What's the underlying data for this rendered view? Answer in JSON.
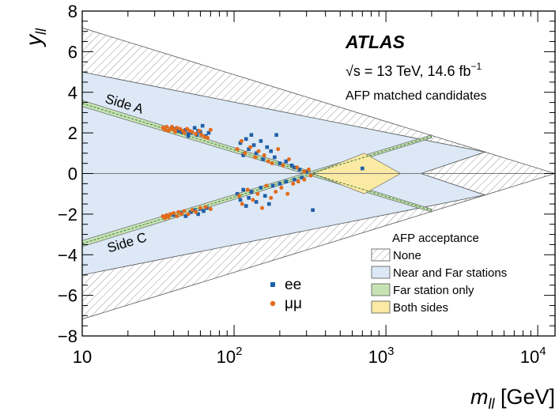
{
  "chart_data": {
    "type": "scatter",
    "xlabel_main": "m",
    "xlabel_sub": "ll",
    "xlabel_unit": " [GeV]",
    "ylabel_main": "y",
    "ylabel_sub": "ll",
    "x_scale": "log",
    "xlim": [
      10,
      13000
    ],
    "ylim": [
      -8,
      8
    ],
    "x_ticks": [
      {
        "value": 10,
        "base": "10",
        "exp": ""
      },
      {
        "value": 100,
        "base": "10",
        "exp": "2"
      },
      {
        "value": 1000,
        "base": "10",
        "exp": "3"
      },
      {
        "value": 10000,
        "base": "10",
        "exp": "4"
      }
    ],
    "y_ticks": [
      "-8",
      "-6",
      "-4",
      "-2",
      "0",
      "2",
      "4",
      "6",
      "8"
    ],
    "atlas_label": "ATLAS",
    "energy_label": "√s = 13 TeV, 14.6 fb",
    "energy_exp": "−1",
    "subtitle": "AFP matched candidates",
    "region_labels": {
      "side_a": "Side A",
      "side_c": "Side C"
    },
    "legend_title": "AFP acceptance",
    "legend": [
      {
        "key": "none",
        "label": "None",
        "color": "#ffffff"
      },
      {
        "key": "near_far",
        "label": "Near and Far stations",
        "color": "#dce8f6"
      },
      {
        "key": "far_only",
        "label": "Far station only",
        "color": "#c7e3b4"
      },
      {
        "key": "both",
        "label": "Both sides",
        "color": "#fbeaa4"
      }
    ],
    "series": [
      {
        "name": "ee",
        "color": "#1f5fa8",
        "marker": "square",
        "points": [
          [
            40,
            2.2
          ],
          [
            43,
            2.1
          ],
          [
            45,
            2.05
          ],
          [
            48,
            2.15
          ],
          [
            50,
            1.95
          ],
          [
            52,
            2.0
          ],
          [
            55,
            2.25
          ],
          [
            57,
            1.9
          ],
          [
            60,
            2.05
          ],
          [
            62,
            2.35
          ],
          [
            65,
            1.85
          ],
          [
            68,
            2.0
          ],
          [
            50,
            1.85
          ],
          [
            58,
            2.1
          ],
          [
            110,
            1.5
          ],
          [
            115,
            0.9
          ],
          [
            120,
            1.7
          ],
          [
            125,
            1.2
          ],
          [
            130,
            1.9
          ],
          [
            135,
            1.4
          ],
          [
            140,
            1.0
          ],
          [
            150,
            1.6
          ],
          [
            155,
            0.7
          ],
          [
            165,
            1.3
          ],
          [
            175,
            1.1
          ],
          [
            185,
            0.8
          ],
          [
            190,
            1.9
          ],
          [
            200,
            0.5
          ],
          [
            220,
            0.6
          ],
          [
            240,
            0.4
          ],
          [
            250,
            0.3
          ],
          [
            270,
            0.2
          ],
          [
            300,
            0.1
          ],
          [
            700,
            0.25
          ],
          [
            40,
            -2.05
          ],
          [
            45,
            -1.95
          ],
          [
            48,
            -2.1
          ],
          [
            52,
            -1.9
          ],
          [
            55,
            -1.8
          ],
          [
            58,
            -2.0
          ],
          [
            60,
            -1.75
          ],
          [
            63,
            -1.85
          ],
          [
            66,
            -1.7
          ],
          [
            105,
            -1.0
          ],
          [
            110,
            -1.3
          ],
          [
            115,
            -0.8
          ],
          [
            120,
            -1.6
          ],
          [
            125,
            -1.2
          ],
          [
            130,
            -0.9
          ],
          [
            140,
            -1.4
          ],
          [
            150,
            -0.7
          ],
          [
            160,
            -1.1
          ],
          [
            170,
            -1.5
          ],
          [
            180,
            -0.6
          ],
          [
            200,
            -0.5
          ],
          [
            220,
            -0.4
          ],
          [
            250,
            -0.3
          ],
          [
            280,
            -0.2
          ],
          [
            330,
            -1.8
          ]
        ]
      },
      {
        "name": "μμ",
        "color": "#e36b1b",
        "marker": "circle",
        "points": [
          [
            34,
            2.25
          ],
          [
            35,
            2.15
          ],
          [
            36,
            2.3
          ],
          [
            37,
            2.1
          ],
          [
            38,
            2.2
          ],
          [
            39,
            2.3
          ],
          [
            40,
            2.15
          ],
          [
            41,
            2.05
          ],
          [
            42,
            2.25
          ],
          [
            44,
            2.2
          ],
          [
            46,
            2.1
          ],
          [
            47,
            2.0
          ],
          [
            49,
            2.2
          ],
          [
            51,
            2.1
          ],
          [
            53,
            2.05
          ],
          [
            56,
            1.95
          ],
          [
            59,
            2.1
          ],
          [
            61,
            1.9
          ],
          [
            64,
            1.8
          ],
          [
            67,
            1.75
          ],
          [
            70,
            2.15
          ],
          [
            105,
            1.2
          ],
          [
            112,
            1.6
          ],
          [
            118,
            1.0
          ],
          [
            128,
            1.3
          ],
          [
            138,
            0.8
          ],
          [
            145,
            1.1
          ],
          [
            158,
            0.9
          ],
          [
            168,
            0.6
          ],
          [
            178,
            0.5
          ],
          [
            195,
            1.2
          ],
          [
            210,
            0.4
          ],
          [
            230,
            0.7
          ],
          [
            260,
            0.3
          ],
          [
            290,
            0.1
          ],
          [
            310,
            0.2
          ],
          [
            34,
            -2.1
          ],
          [
            35,
            -2.2
          ],
          [
            36,
            -2.05
          ],
          [
            37,
            -2.15
          ],
          [
            38,
            -2.0
          ],
          [
            40,
            -1.95
          ],
          [
            42,
            -2.1
          ],
          [
            43,
            -1.9
          ],
          [
            45,
            -2.0
          ],
          [
            47,
            -1.85
          ],
          [
            50,
            -2.0
          ],
          [
            53,
            -1.8
          ],
          [
            56,
            -1.9
          ],
          [
            60,
            -1.7
          ],
          [
            65,
            -1.65
          ],
          [
            70,
            -1.75
          ],
          [
            108,
            -1.1
          ],
          [
            113,
            -1.5
          ],
          [
            123,
            -0.8
          ],
          [
            133,
            -1.3
          ],
          [
            143,
            -1.0
          ],
          [
            153,
            -1.7
          ],
          [
            163,
            -0.6
          ],
          [
            175,
            -1.2
          ],
          [
            188,
            -0.9
          ],
          [
            205,
            -0.7
          ],
          [
            225,
            -1.0
          ],
          [
            245,
            -0.5
          ],
          [
            265,
            -0.4
          ],
          [
            290,
            -0.3
          ],
          [
            320,
            -0.1
          ]
        ]
      }
    ]
  }
}
